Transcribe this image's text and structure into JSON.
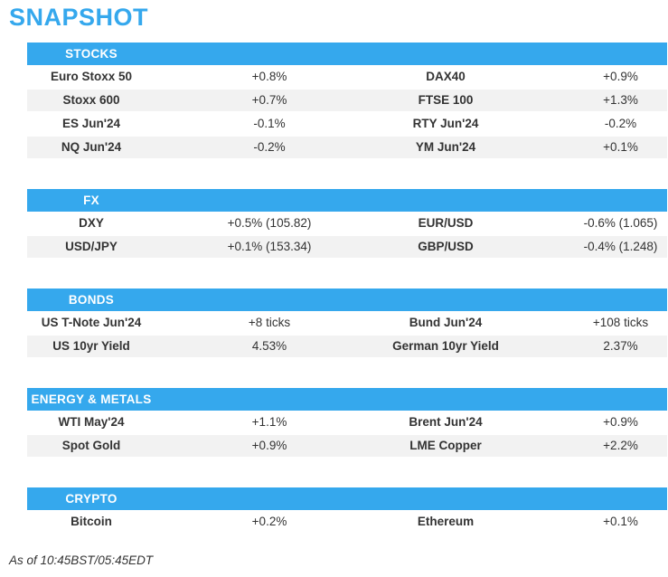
{
  "title": "SNAPSHOT",
  "footer": "As of 10:45BST/05:45EDT",
  "colors": {
    "accent": "#35A8ED",
    "row_alt": "#F2F2F2",
    "text": "#333333",
    "header_text": "#FFFFFF"
  },
  "sections": [
    {
      "header": "STOCKS",
      "rows": [
        [
          "Euro Stoxx 50",
          "+0.8%",
          "DAX40",
          "+0.9%"
        ],
        [
          "Stoxx 600",
          "+0.7%",
          "FTSE 100",
          "+1.3%"
        ],
        [
          "ES Jun'24",
          "-0.1%",
          "RTY Jun'24",
          "-0.2%"
        ],
        [
          "NQ Jun'24",
          "-0.2%",
          "YM Jun'24",
          "+0.1%"
        ]
      ]
    },
    {
      "header": "FX",
      "rows": [
        [
          "DXY",
          "+0.5% (105.82)",
          "EUR/USD",
          "-0.6% (1.065)"
        ],
        [
          "USD/JPY",
          "+0.1% (153.34)",
          "GBP/USD",
          "-0.4% (1.248)"
        ]
      ]
    },
    {
      "header": "BONDS",
      "rows": [
        [
          "US T-Note Jun'24",
          "+8 ticks",
          "Bund Jun'24",
          "+108 ticks"
        ],
        [
          "US 10yr Yield",
          "4.53%",
          "German 10yr Yield",
          "2.37%"
        ]
      ]
    },
    {
      "header": "ENERGY & METALS",
      "rows": [
        [
          "WTI May'24",
          "+1.1%",
          "Brent Jun'24",
          "+0.9%"
        ],
        [
          "Spot Gold",
          "+0.9%",
          "LME Copper",
          "+2.2%"
        ]
      ]
    },
    {
      "header": "CRYPTO",
      "rows": [
        [
          "Bitcoin",
          "+0.2%",
          "Ethereum",
          "+0.1%"
        ]
      ]
    }
  ]
}
